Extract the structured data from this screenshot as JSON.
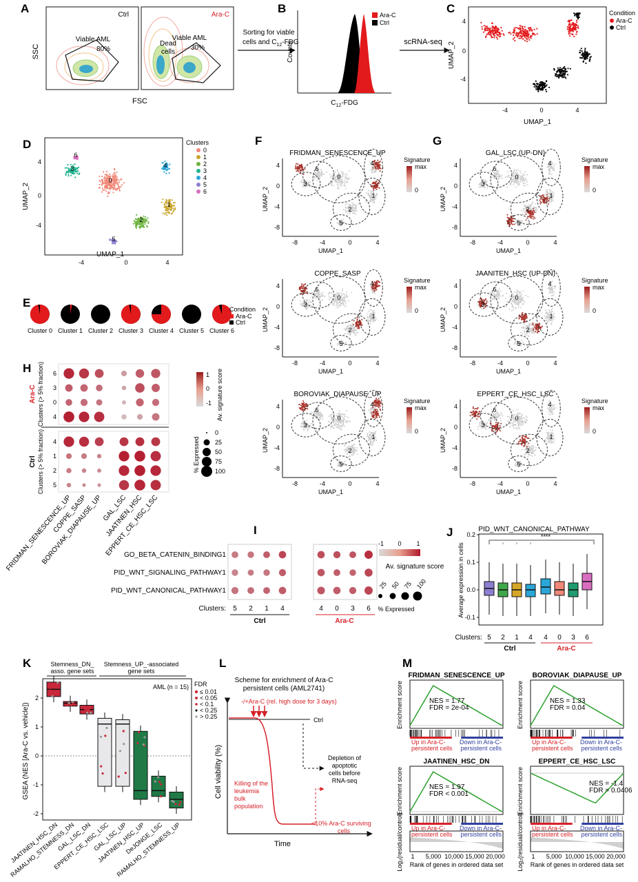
{
  "panels": [
    "A",
    "B",
    "C",
    "D",
    "E",
    "F",
    "G",
    "H",
    "I",
    "J",
    "K",
    "L",
    "M"
  ],
  "colors": {
    "arac": "#e31a1c",
    "ctrl": "#000000",
    "redTitle": "#d62027",
    "blueText": "#2f3f9f",
    "clusters": [
      "#f08878",
      "#c9a42a",
      "#6db33f",
      "#1fb38f",
      "#2aa7d8",
      "#8c7fd1",
      "#d96ec0"
    ],
    "gsea": "#2ca02c",
    "kRed": "#c8283a",
    "kGrey": "#e8e8ea",
    "kGreen": "#1f7a45"
  },
  "A": {
    "ctrl": "Ctrl",
    "arac": "Ara-C",
    "viable": "Viable AML",
    "pct80": "80%",
    "dead1": "Dead",
    "dead2": "cells",
    "pct30": "30%",
    "ssc": "SSC",
    "fsc": "FSC"
  },
  "arrow1": {
    "l1": "Sorting for viable",
    "l2": "cells and C",
    "sub": "12",
    "l3": "-FDG"
  },
  "B": {
    "counts": "Counts",
    "xlab": "C",
    "sub": "12",
    "xlab2": "-FDG",
    "leg": [
      "Ara-C",
      "Ctrl"
    ]
  },
  "arrow2": {
    "label": "scRNA-seq"
  },
  "C": {
    "condTitle": "Condition",
    "leg": [
      "Ara-C",
      "Ctrl"
    ],
    "xlab": "UMAP_1",
    "ylab": "UMAP_2",
    "xt": [
      "-4",
      "0",
      "4"
    ],
    "yt": [
      "4",
      "0",
      "-4"
    ]
  },
  "D": {
    "title": "Clusters",
    "clusters": [
      "0",
      "1",
      "2",
      "3",
      "4",
      "5",
      "6"
    ],
    "xlab": "UMAP_1",
    "ylab": "UMAP_2",
    "xt": [
      "-4",
      "0",
      "4"
    ],
    "yt": [
      "4",
      "0",
      "-4"
    ]
  },
  "E": {
    "condTitle": "Condition",
    "leg": [
      "Ara-C",
      "Ctrl"
    ],
    "clusters": [
      "Cluster 0",
      "Cluster 1",
      "Cluster 2",
      "Cluster 3",
      "Cluster 4",
      "Cluster 5",
      "Cluster 6"
    ],
    "aracFraction": [
      0.97,
      0.03,
      0.0,
      0.97,
      0.75,
      0.0,
      0.95
    ]
  },
  "umapPlots": {
    "titles": {
      "F1": "FRIDMAN_SENESCENCE_UP",
      "F2": "COPPE_SASP",
      "F3": "BOROVIAK_DIAPAUSE_UP",
      "G1": "GAL_LSC (UP-DN)",
      "G2": "JAANITEN_HSC (UP-DN)",
      "G3": "EPPERT_CE_HSC_LSC"
    },
    "legTop": "Signature",
    "legMax": "max",
    "legZero": "0",
    "xlab": "UMAP_1",
    "ylab": "UMAP_2",
    "xt": [
      "-8",
      "-4",
      "0",
      "4"
    ],
    "yt": [
      "4",
      "0",
      "-4",
      "-8"
    ],
    "clusterLabels": [
      "6",
      "3",
      "0",
      "4",
      "1",
      "2",
      "5"
    ]
  },
  "H": {
    "aracLabel": "Ara-C",
    "aracSub": "Clusters (> 5% fraction)",
    "ctrlLabel": "Ctrl",
    "ctrlSub": "Clusters (> 5% fraction)",
    "aracRows": [
      "6",
      "3",
      "0",
      "4"
    ],
    "ctrlRows": [
      "4",
      "1",
      "2",
      "5"
    ],
    "cols": [
      "FRIDMAN_SENESCENCE_UP",
      "COPPE_SASP",
      "BOROVIAK_DIAPAUSE_UP",
      "GAL_LSC",
      "JAATINEN_HSC",
      "EPPERT_CE_HSC_LSC"
    ],
    "scoreTitle": "Av. signature score",
    "scoreTicks": [
      "1",
      "0",
      "-1"
    ],
    "sizeTitle": "% Expressed",
    "sizeTicks": [
      "0",
      "25",
      "50",
      "75",
      "100"
    ]
  },
  "I": {
    "rows": [
      "GO_BETA_CATENIN_BINDING1",
      "PID_WNT_SIGNALING_PATHWAY1",
      "PID_WNT_CANONICAL_PATHWAY1"
    ],
    "clustersLabel": "Clusters:",
    "ctrlCols": [
      "5",
      "2",
      "1",
      "4"
    ],
    "aracCols": [
      "4",
      "0",
      "3",
      "6"
    ],
    "ctrlLabel": "Ctrl",
    "aracLabel": "Ara-C",
    "scoreTicks": [
      "-1",
      "0",
      "1"
    ],
    "scoreTitle": "Av. signature score",
    "sizeTicks": [
      "25",
      "50",
      "75",
      "100"
    ],
    "sizeTitle": "% Expressed"
  },
  "J": {
    "title": "PID_WNT_CANONICAL_PATHWAY",
    "sig": "****",
    "ylab": "Average expression in cells",
    "yt": [
      "0.2",
      "0.1",
      "0.0",
      "-0.1"
    ],
    "clustersLabel": "Clusters:",
    "ctrlCols": [
      "5",
      "2",
      "1",
      "4"
    ],
    "aracCols": [
      "4",
      "0",
      "3",
      "6"
    ],
    "ctrlLabel": "Ctrl",
    "aracLabel": "Ara-C",
    "medians": [
      0.005,
      0.0,
      0.0,
      0.0,
      0.01,
      0.0,
      0.0,
      0.03
    ],
    "q1": [
      -0.02,
      -0.025,
      -0.025,
      -0.025,
      -0.015,
      -0.02,
      -0.025,
      0.0
    ],
    "q3": [
      0.03,
      0.025,
      0.025,
      0.02,
      0.04,
      0.03,
      0.025,
      0.06
    ],
    "boxColors": [
      "#8c7fd1",
      "#3fa84a",
      "#d6a82a",
      "#2aa7d8",
      "#2aa7d8",
      "#f08878",
      "#1f9b6f",
      "#d96ec0"
    ]
  },
  "K": {
    "group1": "Stemness_DN_",
    "group1b": "asso. gene sets",
    "group2": "Stemness_UP_-associated",
    "group2b": "gene sets",
    "aml": "AML (n = 15)",
    "fdrTitle": "FDR",
    "fdr": [
      "≤ 0.01",
      "< 0.05",
      "< 0.1",
      "< 0.25",
      "> 0.25"
    ],
    "ylab": "GSEA (NES [Ara-C vs. vehicle])",
    "yt": [
      "2",
      "1",
      "0",
      "-1",
      "-2"
    ],
    "cats": [
      "JAATINEN_HSC_DN",
      "RAMALHO_STEMNESS_DN",
      "GAL_LSC_DN",
      "EPPERT_CE_HSC_LSC",
      "GAL_LSC_UP",
      "JAATINEN_HSC_UP",
      "DeJONGE_LSC",
      "RAMALHO_STEMNESS_UP"
    ],
    "median": [
      2.3,
      1.82,
      1.6,
      1.1,
      1.1,
      -1.2,
      -1.2,
      -1.5
    ],
    "q1": [
      2.05,
      1.72,
      1.45,
      -1.05,
      -1.05,
      -1.5,
      -1.4,
      -1.8
    ],
    "q3": [
      2.55,
      1.88,
      1.75,
      1.3,
      1.25,
      0.85,
      -0.7,
      -1.25
    ]
  },
  "L": {
    "title1": "Scheme for enrichment of Ara-C",
    "title2": "persistent cells (AML2741)",
    "dose": "-/+Ara-C (rel. high dose for 3 days)",
    "ctrl": "Ctrl",
    "deplete": [
      "Depletion of",
      "apoptotic",
      "cells before",
      "RNA-seq"
    ],
    "kill": [
      "Killing of the",
      "leukemia",
      "bulk",
      "population"
    ],
    "surv": [
      "<10% Ara-C surviving",
      "cells"
    ],
    "ylab": "Cell viability (%)",
    "xlab": "Time"
  },
  "M": {
    "plots": [
      {
        "title": "FRIDMAN_SENESCENCE_UP",
        "nes": "NES = 1.77",
        "fdr": "FDR = 2e-04"
      },
      {
        "title": "BOROVIAK_DIAPAUSE_UP",
        "nes": "NES = 1.33",
        "fdr": "FDR = 0.04"
      },
      {
        "title": "JAATINEN_HSC_DN",
        "nes": "NES = 1.97",
        "fdr": "FDR < 0.001"
      },
      {
        "title": "EPPERT_CE_HSC_LSC",
        "nes": "NES = -1.4",
        "fdr": "FDR = 0.0406"
      }
    ],
    "ylab": "Enrichment score",
    "up": [
      "Up in Ara-C-",
      "persistent cells"
    ],
    "down": [
      "Down in Ara-C-",
      "persistent cells"
    ],
    "ranked": "Rank of genes in ordered data set",
    "logLab": "Log₂(residual/control)",
    "xt": [
      "1",
      "5,000",
      "10,000",
      "15,000",
      "20,000"
    ]
  }
}
